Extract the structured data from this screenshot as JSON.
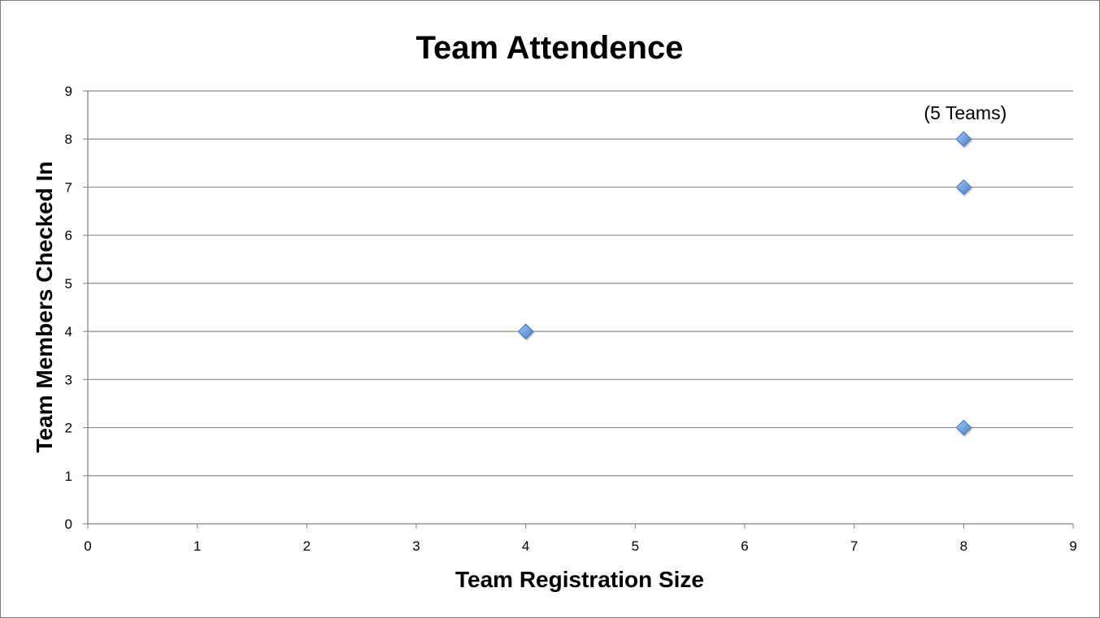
{
  "chart_data": {
    "type": "scatter",
    "title": "Team Attendence",
    "xlabel": "Team Registration Size",
    "ylabel": "Team Members Checked In",
    "xlim": [
      0,
      9
    ],
    "ylim": [
      0,
      9
    ],
    "xticks": [
      "0",
      "1",
      "2",
      "3",
      "4",
      "5",
      "6",
      "7",
      "8",
      "9"
    ],
    "yticks": [
      "0",
      "1",
      "2",
      "3",
      "4",
      "5",
      "6",
      "7",
      "8",
      "9"
    ],
    "grid": "horizontal",
    "legend": "none",
    "marker": "diamond",
    "marker_color": "#6fa0e0",
    "series": [
      {
        "points": [
          {
            "x": 8,
            "y": 8
          },
          {
            "x": 8,
            "y": 7
          },
          {
            "x": 4,
            "y": 4
          },
          {
            "x": 8,
            "y": 2
          }
        ]
      }
    ],
    "annotations": [
      {
        "text": "(5 Teams)",
        "x": 8,
        "y": 8
      }
    ]
  }
}
